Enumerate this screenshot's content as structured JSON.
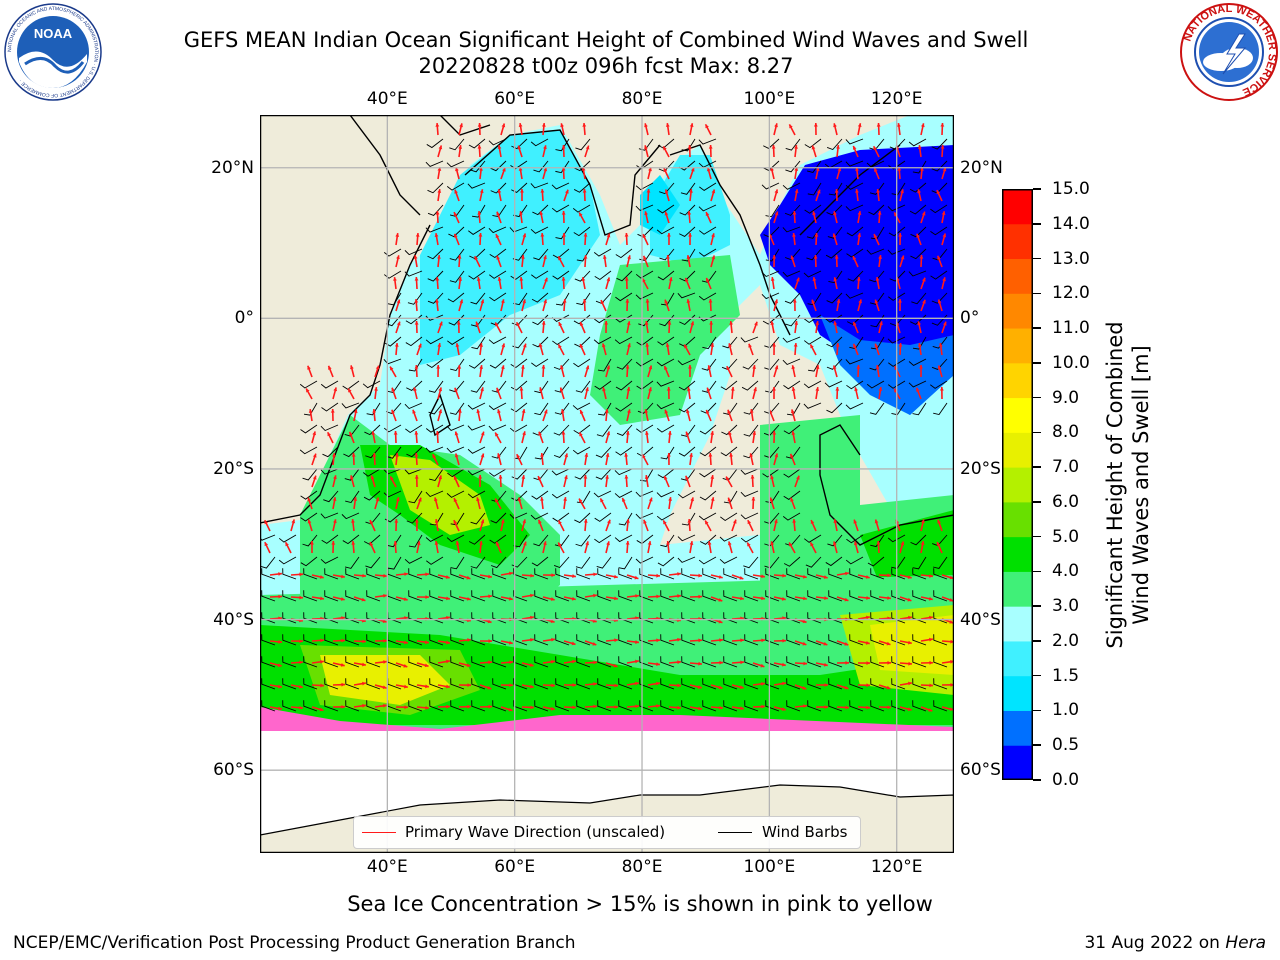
{
  "header": {
    "title": "GEFS MEAN Indian Ocean Significant Height of Combined Wind Waves and Swell",
    "subtitle": "20220828 t00z 096h fcst   Max: 8.27"
  },
  "logos": {
    "noaa": {
      "text": "NOAA",
      "ring_text": "NATIONAL OCEANIC AND ATMOSPHERIC ADMINISTRATION · U.S. DEPARTMENT OF COMMERCE ·"
    },
    "nws": {
      "ring_text": "NATIONAL WEATHER SERVICE"
    }
  },
  "map": {
    "lon_labels": [
      "40°E",
      "60°E",
      "80°E",
      "100°E",
      "120°E"
    ],
    "lon_values": [
      40,
      60,
      80,
      100,
      120
    ],
    "lat_labels_left": [
      "20°N",
      "0°",
      "20°S",
      "40°S",
      "60°S"
    ],
    "lat_labels_right": [
      "20°N",
      "0°",
      "20°S",
      "40°S",
      "60°S"
    ],
    "lat_values": [
      20,
      0,
      -20,
      -40,
      -60
    ],
    "lon_range": [
      20,
      129
    ],
    "lat_range": [
      -71,
      27
    ],
    "colors": {
      "land": "#efecda",
      "grid": "#b4b4b4",
      "ice": "#ffffff",
      "wave_arrow": "#ff1a1a",
      "wind_barb": "#000000"
    }
  },
  "colorbar": {
    "title_line1": "Significant Height of Combined",
    "title_line2": "Wind Waves and Swell [m]",
    "tick_labels": [
      "0.0",
      "0.5",
      "1.0",
      "1.5",
      "2.0",
      "3.0",
      "4.0",
      "5.0",
      "6.0",
      "7.0",
      "8.0",
      "9.0",
      "10.0",
      "11.0",
      "12.0",
      "13.0",
      "14.0",
      "15.0"
    ],
    "colors": [
      "#0000ff",
      "#0070ff",
      "#00e4ff",
      "#40f0ff",
      "#a8ffff",
      "#40f078",
      "#00e000",
      "#68e000",
      "#b4f000",
      "#e8f000",
      "#ffff00",
      "#ffd400",
      "#ffb000",
      "#ff8800",
      "#ff6000",
      "#ff3000",
      "#ff0000"
    ]
  },
  "legend": {
    "wave_label": "Primary Wave Direction (unscaled)",
    "wind_label": "Wind Barbs"
  },
  "caption": "Sea Ice Concentration > 15% is shown in pink to yellow",
  "footer": {
    "left": "NCEP/EMC/Verification Post Processing Product Generation Branch",
    "right_prefix": "31 Aug 2022 on ",
    "right_host": "Hera"
  }
}
